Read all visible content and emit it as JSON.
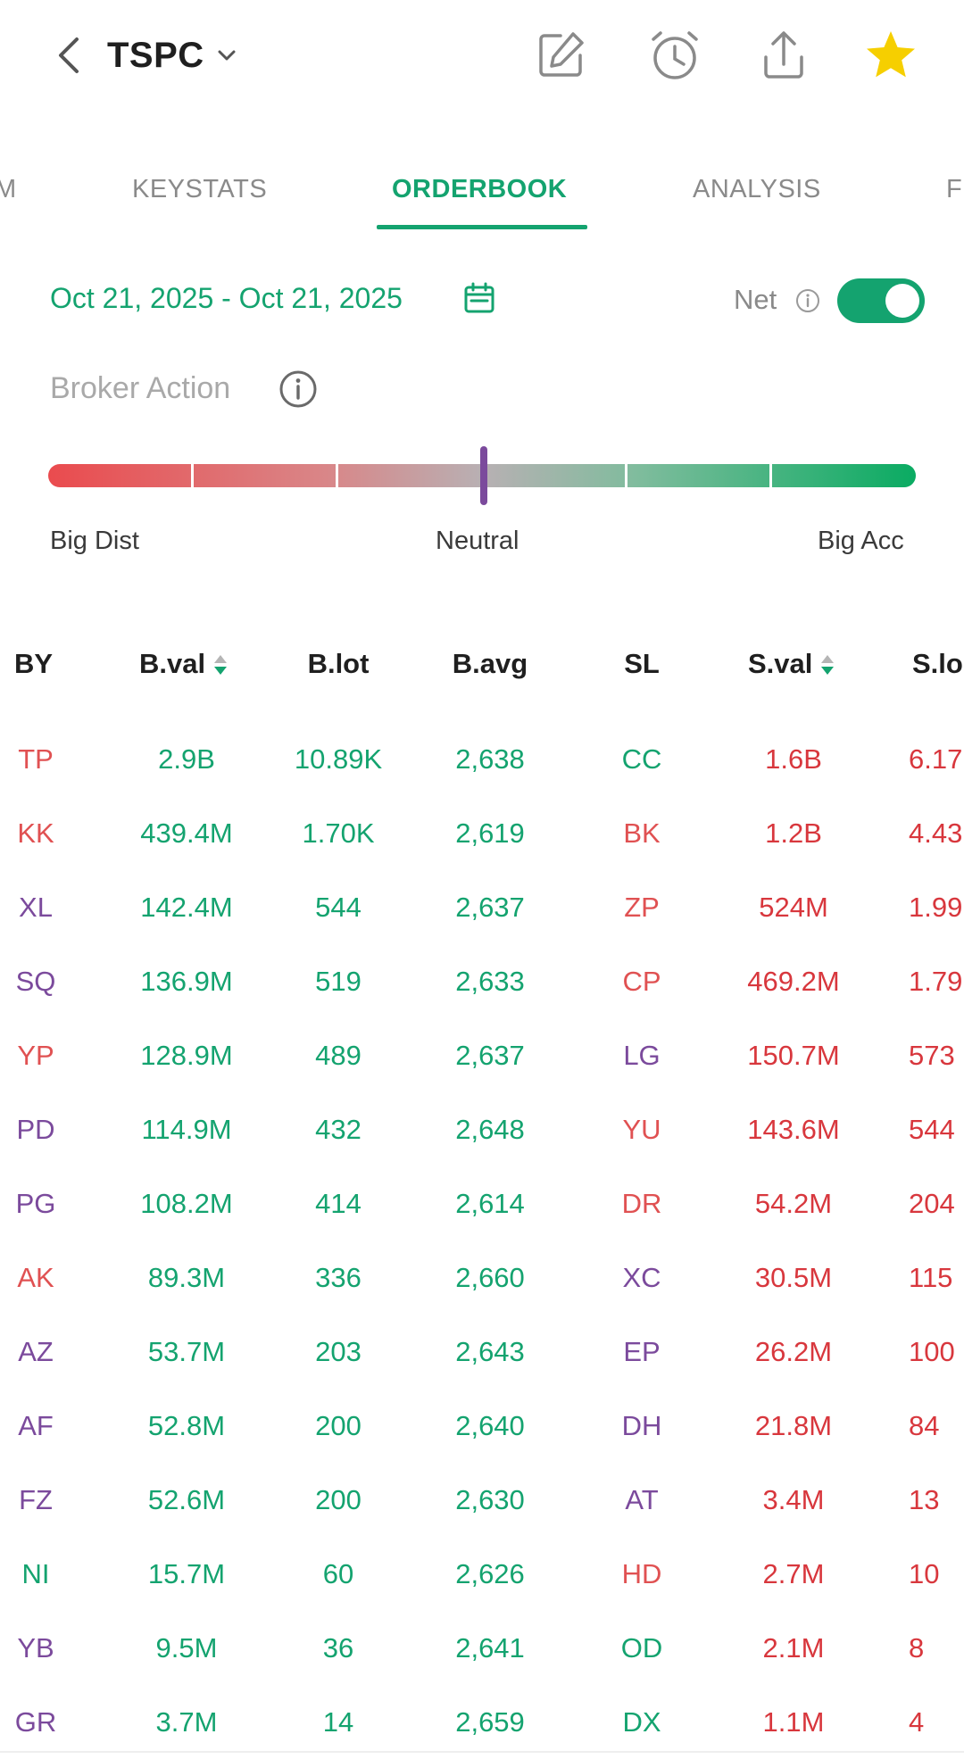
{
  "header": {
    "ticker": "TSPC",
    "icons": [
      "back-icon",
      "chevron-down-icon",
      "edit-icon",
      "alarm-clock-icon",
      "share-icon",
      "star-icon"
    ],
    "colors": {
      "accent": "#14a36f",
      "star": "#f6cf00"
    }
  },
  "tabs": [
    {
      "label": "M"
    },
    {
      "label": "KEYSTATS"
    },
    {
      "label": "ORDERBOOK",
      "active": true
    },
    {
      "label": "ANALYSIS"
    },
    {
      "label": "F"
    }
  ],
  "filters": {
    "date_range": "Oct 21, 2025 - Oct 21, 2025",
    "net_label": "Net",
    "net_enabled": true
  },
  "broker_action": {
    "title": "Broker Action",
    "left_label": "Big Dist",
    "center_label": "Neutral",
    "right_label": "Big Acc"
  },
  "table": {
    "headers": [
      "BY",
      "B.val",
      "B.lot",
      "B.avg",
      "SL",
      "S.val",
      "S.lo"
    ],
    "rows": [
      {
        "by": "TP",
        "by_color": "red",
        "bval": "2.9B",
        "blot": "10.89K",
        "bavg": "2,638",
        "sl": "CC",
        "sl_color": "green",
        "sval": "1.6B",
        "slot": "6.17"
      },
      {
        "by": "KK",
        "by_color": "red",
        "bval": "439.4M",
        "blot": "1.70K",
        "bavg": "2,619",
        "sl": "BK",
        "sl_color": "red",
        "sval": "1.2B",
        "slot": "4.43"
      },
      {
        "by": "XL",
        "by_color": "purple",
        "bval": "142.4M",
        "blot": "544",
        "bavg": "2,637",
        "sl": "ZP",
        "sl_color": "red",
        "sval": "524M",
        "slot": "1.99"
      },
      {
        "by": "SQ",
        "by_color": "purple",
        "bval": "136.9M",
        "blot": "519",
        "bavg": "2,633",
        "sl": "CP",
        "sl_color": "red",
        "sval": "469.2M",
        "slot": "1.79"
      },
      {
        "by": "YP",
        "by_color": "red",
        "bval": "128.9M",
        "blot": "489",
        "bavg": "2,637",
        "sl": "LG",
        "sl_color": "purple",
        "sval": "150.7M",
        "slot": "573"
      },
      {
        "by": "PD",
        "by_color": "purple",
        "bval": "114.9M",
        "blot": "432",
        "bavg": "2,648",
        "sl": "YU",
        "sl_color": "red",
        "sval": "143.6M",
        "slot": "544"
      },
      {
        "by": "PG",
        "by_color": "purple",
        "bval": "108.2M",
        "blot": "414",
        "bavg": "2,614",
        "sl": "DR",
        "sl_color": "red",
        "sval": "54.2M",
        "slot": "204"
      },
      {
        "by": "AK",
        "by_color": "red",
        "bval": "89.3M",
        "blot": "336",
        "bavg": "2,660",
        "sl": "XC",
        "sl_color": "purple",
        "sval": "30.5M",
        "slot": "115"
      },
      {
        "by": "AZ",
        "by_color": "purple",
        "bval": "53.7M",
        "blot": "203",
        "bavg": "2,643",
        "sl": "EP",
        "sl_color": "purple",
        "sval": "26.2M",
        "slot": "100"
      },
      {
        "by": "AF",
        "by_color": "purple",
        "bval": "52.8M",
        "blot": "200",
        "bavg": "2,640",
        "sl": "DH",
        "sl_color": "purple",
        "sval": "21.8M",
        "slot": "84"
      },
      {
        "by": "FZ",
        "by_color": "purple",
        "bval": "52.6M",
        "blot": "200",
        "bavg": "2,630",
        "sl": "AT",
        "sl_color": "purple",
        "sval": "3.4M",
        "slot": "13"
      },
      {
        "by": "NI",
        "by_color": "green",
        "bval": "15.7M",
        "blot": "60",
        "bavg": "2,626",
        "sl": "HD",
        "sl_color": "red",
        "sval": "2.7M",
        "slot": "10"
      },
      {
        "by": "YB",
        "by_color": "purple",
        "bval": "9.5M",
        "blot": "36",
        "bavg": "2,641",
        "sl": "OD",
        "sl_color": "green",
        "sval": "2.1M",
        "slot": "8"
      },
      {
        "by": "GR",
        "by_color": "purple",
        "bval": "3.7M",
        "blot": "14",
        "bavg": "2,659",
        "sl": "DX",
        "sl_color": "green",
        "sval": "1.1M",
        "slot": "4"
      }
    ]
  }
}
